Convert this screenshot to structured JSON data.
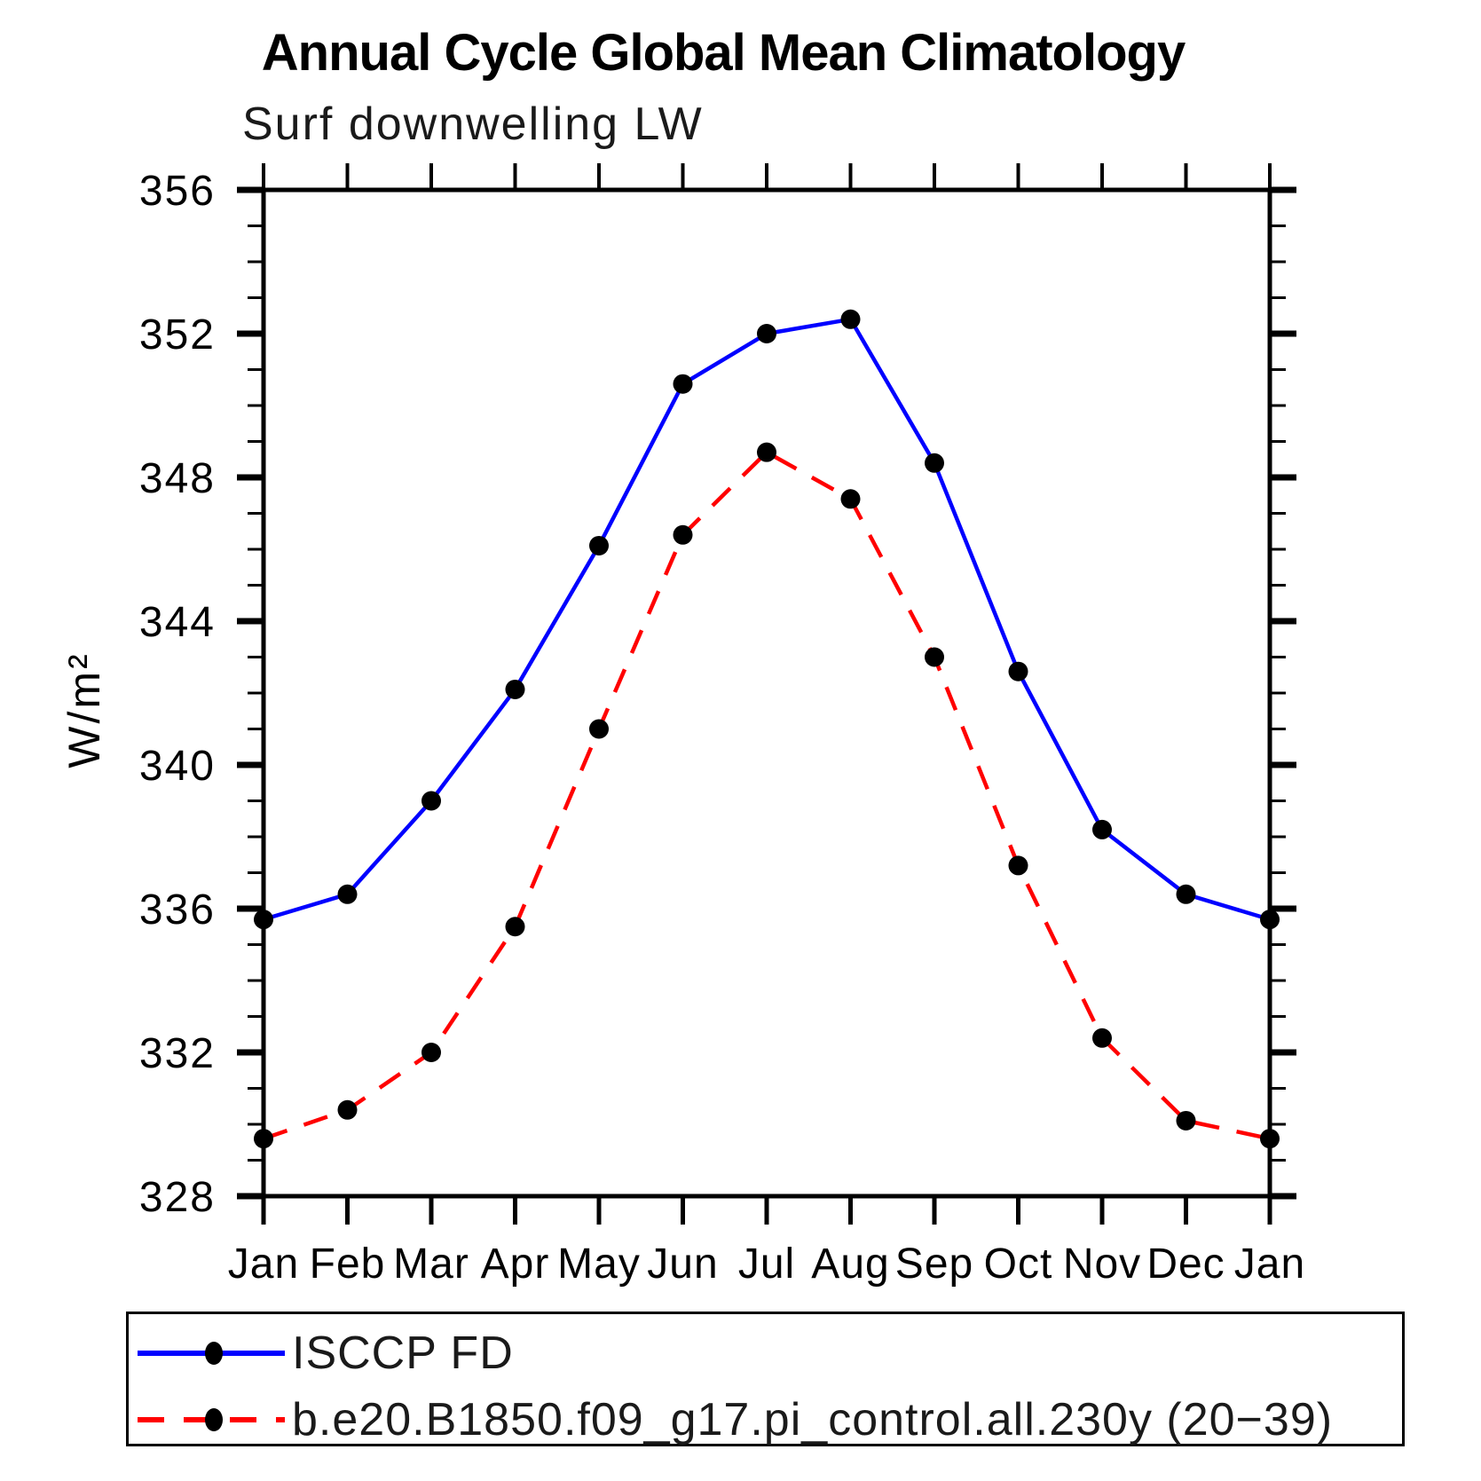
{
  "title": "Annual Cycle Global Mean Climatology",
  "subtitle": "Surf downwelling LW",
  "legend": {
    "items": [
      {
        "label": "ISCCP FD",
        "color": "#0000ff",
        "style": "solid"
      },
      {
        "label": "b.e20.B1850.f09_g17.pi_control.all.230y (20−39)",
        "color": "#ff0000",
        "style": "dashed"
      }
    ]
  },
  "chart_data": {
    "type": "line",
    "title": "Annual Cycle Global Mean Climatology",
    "subtitle": "Surf downwelling LW",
    "xlabel": "",
    "ylabel": "W/m²",
    "categories": [
      "Jan",
      "Feb",
      "Mar",
      "Apr",
      "May",
      "Jun",
      "Jul",
      "Aug",
      "Sep",
      "Oct",
      "Nov",
      "Dec",
      "Jan"
    ],
    "ylim": [
      328,
      356
    ],
    "y_ticks": [
      328,
      332,
      336,
      340,
      344,
      348,
      352,
      356
    ],
    "y_minor_step": 1,
    "grid": false,
    "legend_position": "bottom",
    "marker_color": "#000000",
    "axis_color": "#000000",
    "series": [
      {
        "name": "ISCCP FD",
        "color": "#0000ff",
        "dash": "solid",
        "values": [
          335.7,
          336.4,
          339.0,
          342.1,
          346.1,
          350.6,
          352.0,
          352.4,
          348.4,
          342.6,
          338.2,
          336.4,
          335.7
        ]
      },
      {
        "name": "b.e20.B1850.f09_g17.pi_control.all.230y (20−39)",
        "color": "#ff0000",
        "dash": "dashed",
        "values": [
          329.6,
          330.4,
          332.0,
          335.5,
          341.0,
          346.4,
          348.7,
          347.4,
          343.0,
          337.2,
          332.4,
          330.1,
          329.6
        ]
      }
    ]
  }
}
